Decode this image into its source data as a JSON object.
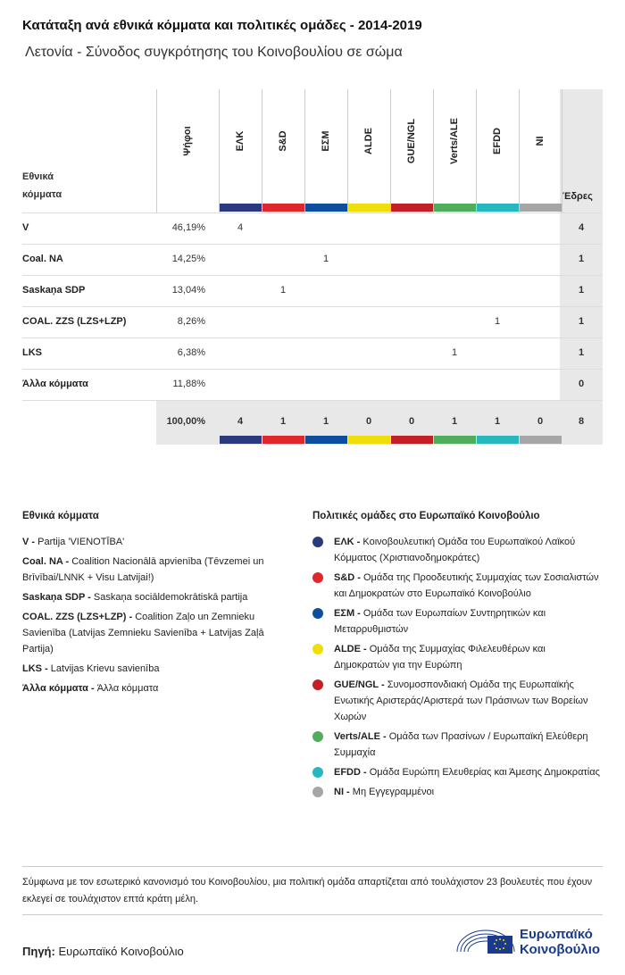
{
  "title": "Κατάταξη ανά εθνικά κόμματα και πολιτικές ομάδες - 2014-2019",
  "subtitle": "Λετονία - Σύνοδος συγκρότησης του Κοινοβουλίου σε σώμα",
  "table": {
    "natl_header_line1": "Εθνικά",
    "natl_header_line2": "κόμματα",
    "votes_header": "Ψήφοι",
    "seats_header": "Έδρες",
    "groups": [
      {
        "label": "ΕΛΚ",
        "color": "#2b3a7e"
      },
      {
        "label": "S&D",
        "color": "#e0272c"
      },
      {
        "label": "ΕΣΜ",
        "color": "#0d4f9e"
      },
      {
        "label": "ALDE",
        "color": "#f0dd0c"
      },
      {
        "label": "GUE/NGL",
        "color": "#c22026"
      },
      {
        "label": "Verts/ALE",
        "color": "#4fad5b"
      },
      {
        "label": "EFDD",
        "color": "#26b7bf"
      },
      {
        "label": "NI",
        "color": "#a6a6a6"
      }
    ],
    "rows": [
      {
        "party": "V",
        "votes": "46,19%",
        "cells": [
          "4",
          "",
          "",
          "",
          "",
          "",
          "",
          ""
        ],
        "seats": "4"
      },
      {
        "party": "Coal. NA",
        "votes": "14,25%",
        "cells": [
          "",
          "",
          "1",
          "",
          "",
          "",
          "",
          ""
        ],
        "seats": "1"
      },
      {
        "party": "Saskaņa SDP",
        "votes": "13,04%",
        "cells": [
          "",
          "1",
          "",
          "",
          "",
          "",
          "",
          ""
        ],
        "seats": "1"
      },
      {
        "party": "COAL. ZZS (LZS+LZP)",
        "votes": "8,26%",
        "cells": [
          "",
          "",
          "",
          "",
          "",
          "",
          "1",
          ""
        ],
        "seats": "1"
      },
      {
        "party": "LKS",
        "votes": "6,38%",
        "cells": [
          "",
          "",
          "",
          "",
          "",
          "1",
          "",
          ""
        ],
        "seats": "1"
      },
      {
        "party": "Άλλα κόμματα",
        "votes": "11,88%",
        "cells": [
          "",
          "",
          "",
          "",
          "",
          "",
          "",
          ""
        ],
        "seats": "0"
      }
    ],
    "totals": {
      "votes": "100,00%",
      "cells": [
        "4",
        "1",
        "1",
        "0",
        "0",
        "1",
        "1",
        "0"
      ],
      "seats": "8"
    }
  },
  "legend_national": {
    "heading": "Εθνικά κόμματα",
    "items": [
      {
        "abbr": "V -",
        "text": "Partija 'VIENOTĪBA'"
      },
      {
        "abbr": "Coal. NA -",
        "text": "Coalition Nacionālā apvienība (Tēvzemei un Brīvībai/LNNK + Visu Latvijai!)"
      },
      {
        "abbr": "Saskaņa SDP -",
        "text": "Saskaņa sociāldemokrātiskā partija"
      },
      {
        "abbr": "COAL. ZZS (LZS+LZP) -",
        "text": "Coalition Zaļo un Zemnieku Savienība (Latvijas Zemnieku Savienība + Latvijas Zaļā Partija)"
      },
      {
        "abbr": "LKS -",
        "text": "Latvijas Krievu savienība"
      },
      {
        "abbr": "Άλλα κόμματα -",
        "text": "Άλλα κόμματα"
      }
    ]
  },
  "legend_groups": {
    "heading": "Πολιτικές ομάδες στο Ευρωπαϊκό Κοινοβούλιο",
    "items": [
      {
        "abbr": "ΕΛΚ -",
        "text": "Κοινοβουλευτική Ομάδα του Ευρωπαϊκού Λαϊκού Κόμματος (Χριστιανοδημοκράτες)",
        "color": "#2b3a7e"
      },
      {
        "abbr": "S&D -",
        "text": "Ομάδα της Προοδευτικής Συμμαχίας των Σοσιαλιστών και Δημοκρατών στο Ευρωπαϊκό Κοινοβούλιο",
        "color": "#e0272c"
      },
      {
        "abbr": "ΕΣΜ -",
        "text": "Ομάδα των Ευρωπαίων Συντηρητικών και Μεταρρυθμιστών",
        "color": "#0d4f9e"
      },
      {
        "abbr": "ALDE -",
        "text": "Ομάδα της Συμμαχίας Φιλελευθέρων και Δημοκρατών για την Ευρώπη",
        "color": "#f0dd0c"
      },
      {
        "abbr": "GUE/NGL -",
        "text": "Συνομοσπονδιακή Ομάδα της Ευρωπαϊκής Ενωτικής Αριστεράς/Αριστερά των Πράσινων των Βορείων Χωρών",
        "color": "#c22026"
      },
      {
        "abbr": "Verts/ALE -",
        "text": "Ομάδα των Πρασίνων / Ευρωπαϊκή Ελεύθερη Συμμαχία",
        "color": "#4fad5b"
      },
      {
        "abbr": "EFDD -",
        "text": "Ομάδα Ευρώπη Ελευθερίας και Άμεσης Δημοκρατίας",
        "color": "#26b7bf"
      },
      {
        "abbr": "NI -",
        "text": "Μη Εγγεγραμμένοι",
        "color": "#a6a6a6"
      }
    ]
  },
  "footnote": "Σύμφωνα με τον εσωτερικό κανονισμό του Κοινοβουλίου, μια πολιτική ομάδα απαρτίζεται από τουλάχιστον 23 βουλευτές που έχουν εκλεγεί σε τουλάχιστον επτά κράτη μέλη.",
  "source": {
    "label": "Πηγή:",
    "value": "Ευρωπαϊκό Κοινοβούλιο"
  },
  "logo": {
    "line1": "Ευρωπαϊκό",
    "line2": "Κοινοβούλιο",
    "brand_color": "#1a3a8c"
  }
}
